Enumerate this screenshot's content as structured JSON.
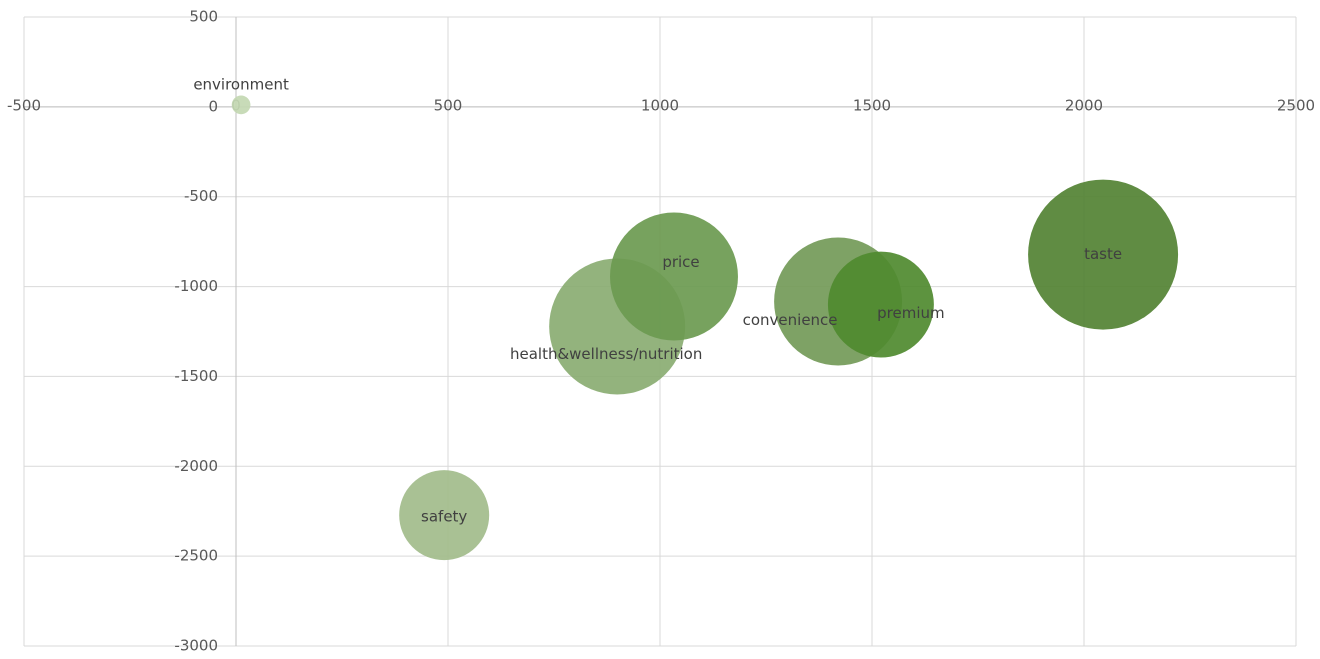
{
  "chart_data": {
    "type": "bubble",
    "xlim": [
      -500,
      2500
    ],
    "xticks": [
      -500,
      0,
      500,
      1000,
      1500,
      2000,
      2500
    ],
    "ylim": [
      -3000,
      500
    ],
    "yticks": [
      -3000,
      -2500,
      -2000,
      -1500,
      -1000,
      -500,
      0,
      500
    ],
    "grid": true,
    "series": [
      {
        "name": "environment",
        "color": "#c3d8b2",
        "x": [
          12
        ],
        "values": [
          11
        ],
        "sizes": [
          14
        ]
      },
      {
        "name": "safety",
        "color": "#a2bc8b",
        "x": [
          491
        ],
        "values": [
          -2272
        ],
        "sizes": [
          324
        ]
      },
      {
        "name": "health&wellness/nutrition",
        "color": "#8aad72",
        "x": [
          899
        ],
        "values": [
          -1222
        ],
        "sizes": [
          740
        ]
      },
      {
        "name": "price",
        "color": "#6b9a50",
        "x": [
          1033
        ],
        "values": [
          -944
        ],
        "sizes": [
          655
        ]
      },
      {
        "name": "convenience",
        "color": "#739a58",
        "x": [
          1420
        ],
        "values": [
          -1083
        ],
        "sizes": [
          655
        ]
      },
      {
        "name": "premium",
        "color": "#4f8a2f",
        "x": [
          1521
        ],
        "values": [
          -1100
        ],
        "sizes": [
          449
        ]
      },
      {
        "name": "taste",
        "color": "#528233",
        "x": [
          2045
        ],
        "values": [
          -822
        ],
        "sizes": [
          900
        ]
      }
    ]
  }
}
